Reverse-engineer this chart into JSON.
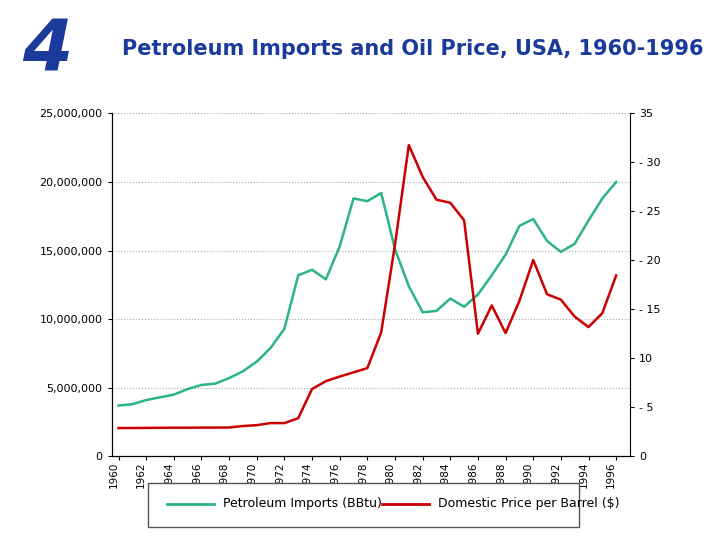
{
  "title": "Petroleum Imports and Oil Price, USA, 1960-1996",
  "title_color": "#1a3a9c",
  "bg_color": "#ffffff",
  "header_bg": "#aed4f0",
  "number_bg": "#1a3a9c",
  "number_color": "#1a3a9c",
  "sidebar_color": "#0000cc",
  "years": [
    1960,
    1961,
    1962,
    1963,
    1964,
    1965,
    1966,
    1967,
    1968,
    1969,
    1970,
    1971,
    1972,
    1973,
    1974,
    1975,
    1976,
    1977,
    1978,
    1979,
    1980,
    1981,
    1982,
    1983,
    1984,
    1985,
    1986,
    1987,
    1988,
    1989,
    1990,
    1991,
    1992,
    1993,
    1994,
    1995,
    1996
  ],
  "imports_btu": [
    3700000,
    3800000,
    4100000,
    4300000,
    4500000,
    4900000,
    5200000,
    5300000,
    5700000,
    6200000,
    6900000,
    7900000,
    9300000,
    13200000,
    13600000,
    12900000,
    15300000,
    18800000,
    18600000,
    19200000,
    15100000,
    12400000,
    10500000,
    10600000,
    11500000,
    10900000,
    11800000,
    13200000,
    14700000,
    16800000,
    17300000,
    15700000,
    14900000,
    15500000,
    17200000,
    18800000,
    20000000
  ],
  "price_barrel": [
    2.88,
    2.89,
    2.9,
    2.91,
    2.92,
    2.92,
    2.93,
    2.93,
    2.94,
    3.09,
    3.18,
    3.39,
    3.39,
    3.89,
    6.87,
    7.67,
    8.14,
    8.57,
    9.0,
    12.64,
    21.59,
    31.77,
    28.52,
    26.19,
    25.88,
    24.09,
    12.51,
    15.4,
    12.58,
    15.86,
    20.03,
    16.54,
    15.99,
    14.25,
    13.19,
    14.62,
    18.46
  ],
  "imports_color": "#2db38a",
  "price_color": "#cc0000",
  "left_ylim": [
    0,
    25000000
  ],
  "right_ylim": [
    0,
    35
  ],
  "left_yticks": [
    0,
    5000000,
    10000000,
    15000000,
    20000000,
    25000000
  ],
  "left_ytick_labels": [
    "0",
    "5,000,000",
    "10,000,000",
    "15,000,000",
    "20,000,000",
    "25,000,000"
  ],
  "right_ytick_vals": [
    0,
    5,
    10,
    15,
    20,
    25,
    30,
    35
  ],
  "right_ytick_labels": [
    "0",
    "- 5",
    "10",
    "- 15",
    "- 20",
    "- 25",
    "- 30",
    "35"
  ],
  "legend_imports": "Petroleum Imports (BBtu)",
  "legend_price": "Domestic Price per Barrel ($)"
}
